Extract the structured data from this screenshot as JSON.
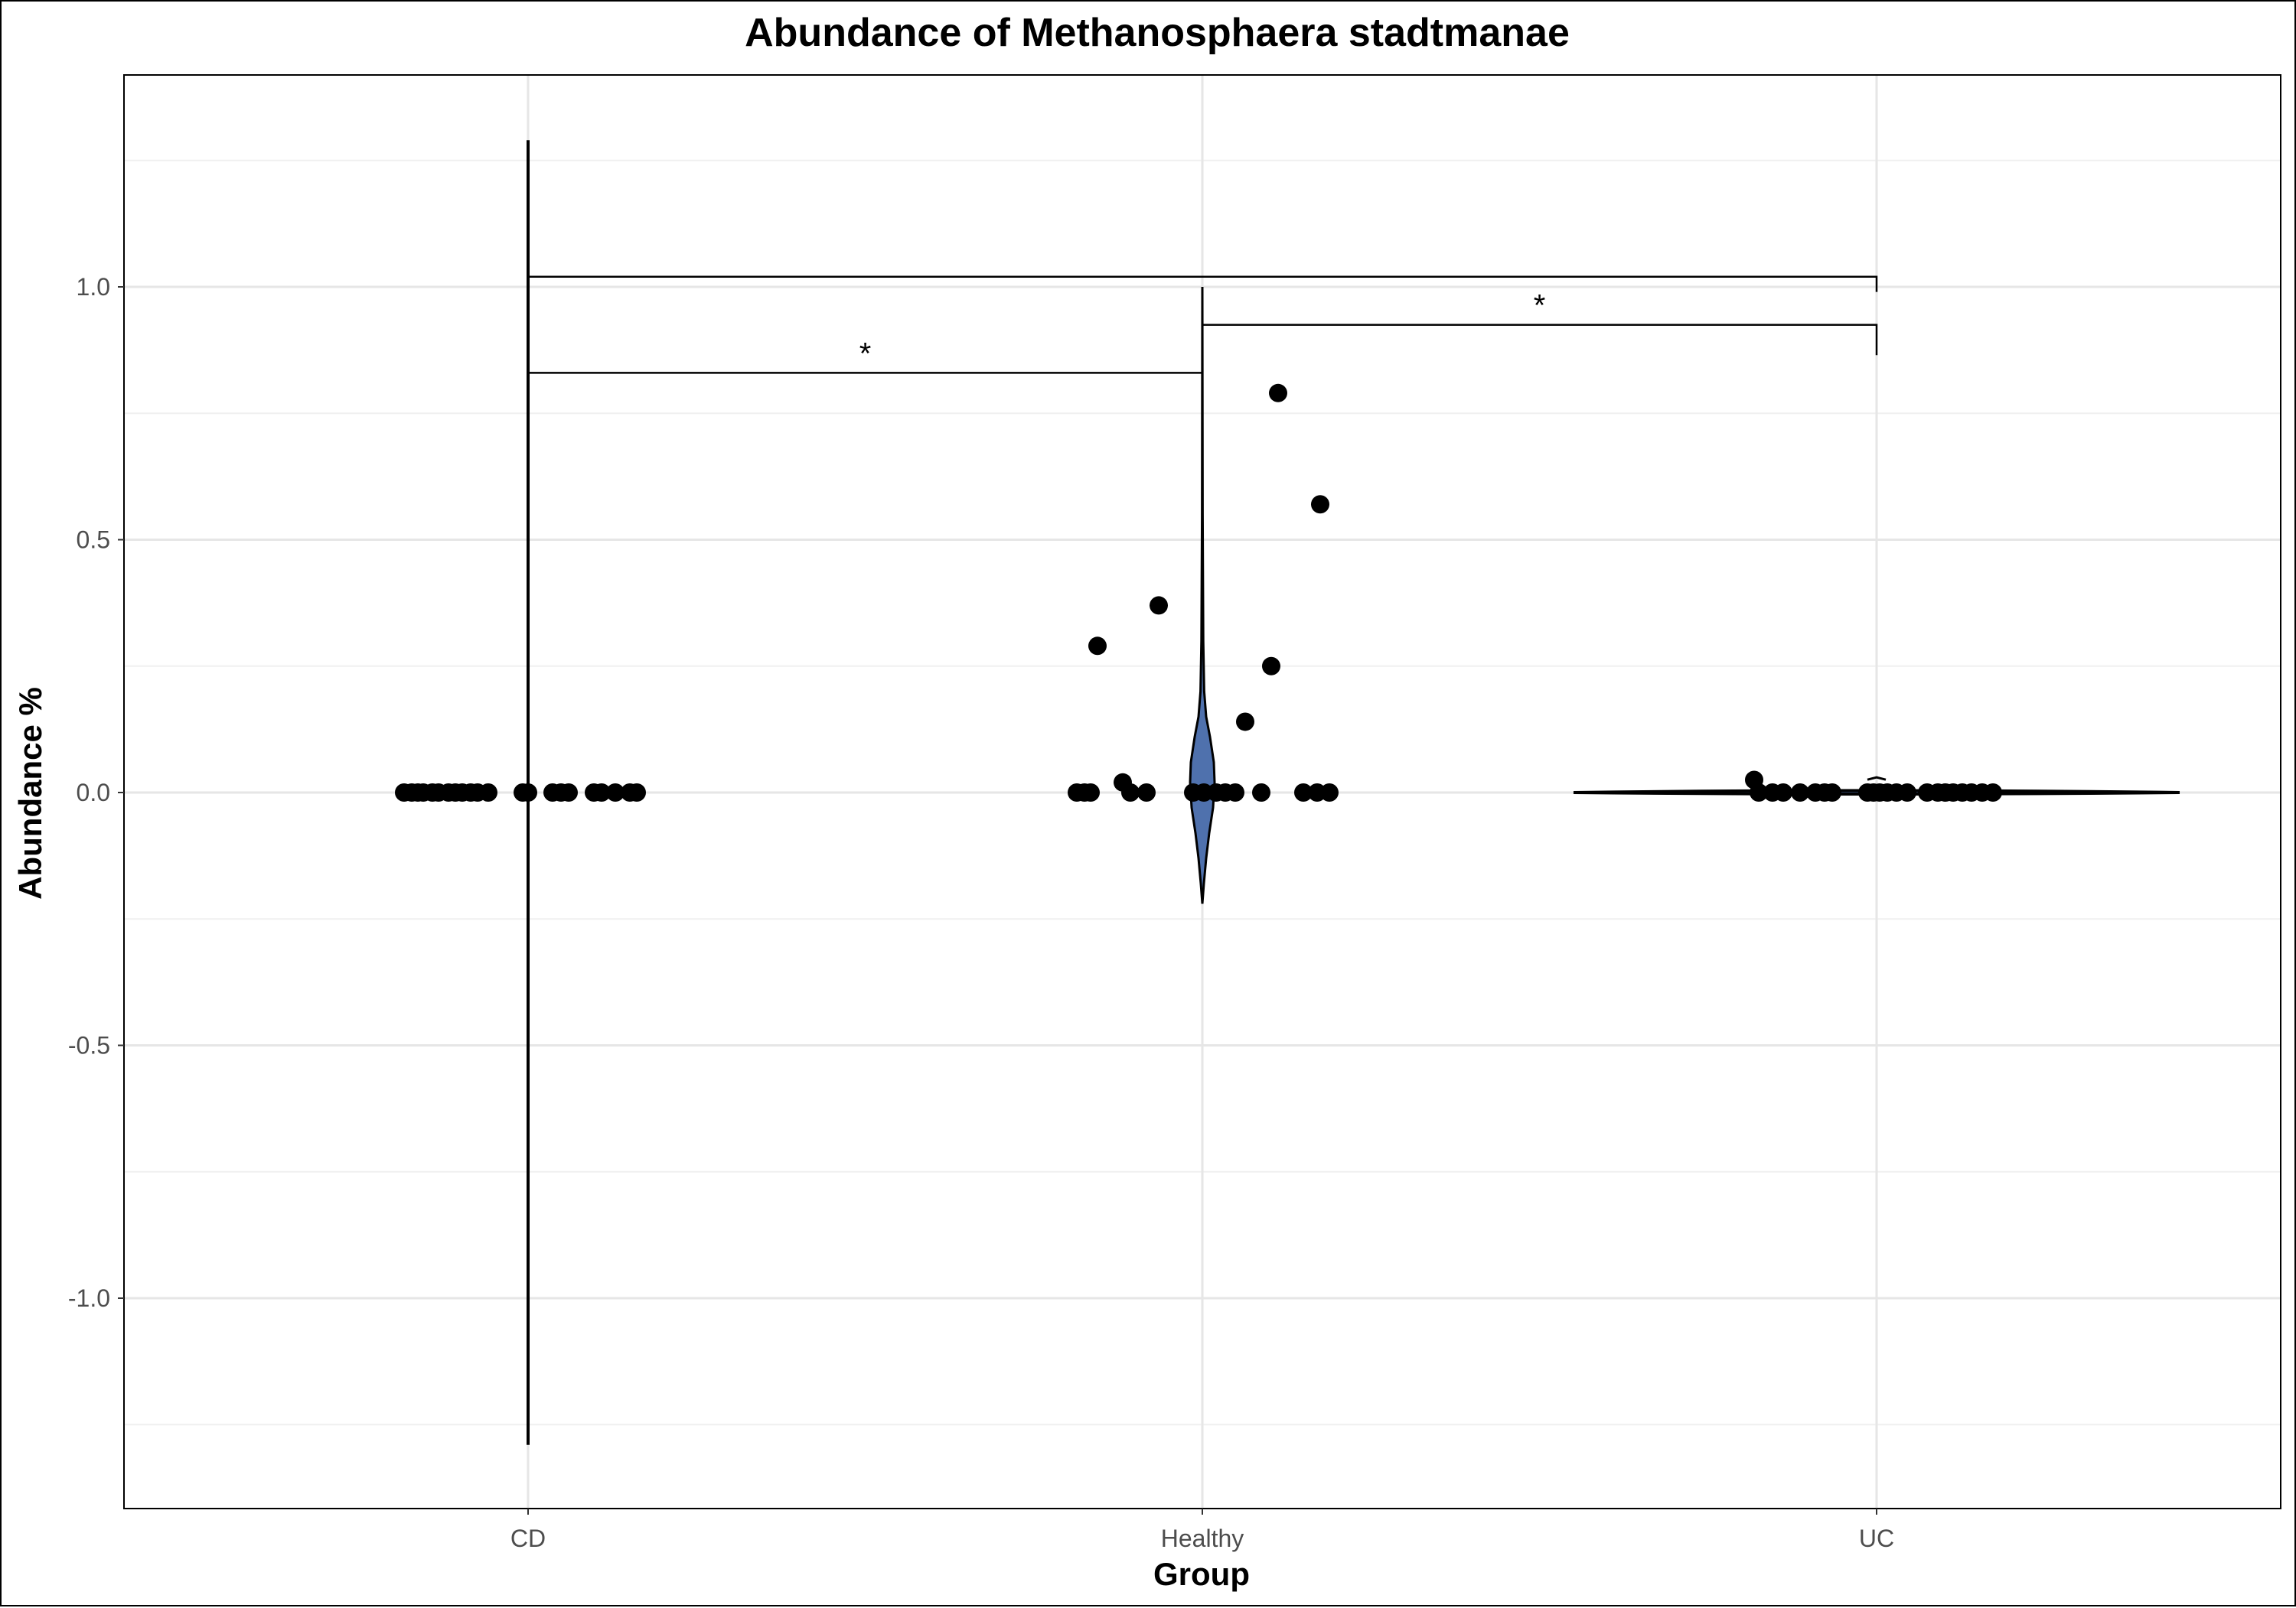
{
  "chart_data": {
    "type": "violin",
    "title": "Abundance of Methanosphaera stadtmanae",
    "xlabel": "Group",
    "ylabel": "Abundance %",
    "categories": [
      "CD",
      "Healthy",
      "UC"
    ],
    "ylim": [
      -1.42,
      1.42
    ],
    "yticks": [
      -1.0,
      -0.5,
      0.0,
      0.5,
      1.0
    ],
    "ytick_labels": [
      "-1.0",
      "-0.5",
      "0.0",
      "0.5",
      "1.0"
    ],
    "grid": true,
    "violin_fill": "#4f71ad",
    "violin_ranges": [
      [
        -1.29,
        1.29
      ],
      [
        -0.22,
        1.0
      ],
      [
        -0.005,
        0.03
      ]
    ],
    "points": [
      {
        "group": "CD",
        "values": [
          0,
          0,
          0,
          0,
          0,
          0,
          0,
          0,
          0,
          0,
          0,
          0,
          0,
          0,
          0,
          0,
          0,
          0,
          0,
          0,
          0,
          0
        ]
      },
      {
        "group": "Healthy",
        "values": [
          0,
          0,
          0,
          0.29,
          0.02,
          0,
          0.37,
          0,
          0,
          0,
          0,
          0,
          0,
          0.14,
          0.79,
          0,
          0.25,
          0.57,
          0,
          0,
          0
        ]
      },
      {
        "group": "UC",
        "values": [
          0.025,
          0,
          0,
          0,
          0,
          0,
          0,
          0,
          0,
          0,
          0,
          0,
          0,
          0,
          0,
          0,
          0,
          0,
          0,
          0,
          0,
          0
        ]
      }
    ],
    "comparisons": [
      {
        "from": "CD",
        "to": "Healthy",
        "y": 0.83,
        "label": "*"
      },
      {
        "from": "Healthy",
        "to": "UC",
        "y": 0.925,
        "label": "*"
      },
      {
        "from": "CD",
        "to": "UC",
        "y": 1.02,
        "label": ""
      }
    ]
  }
}
